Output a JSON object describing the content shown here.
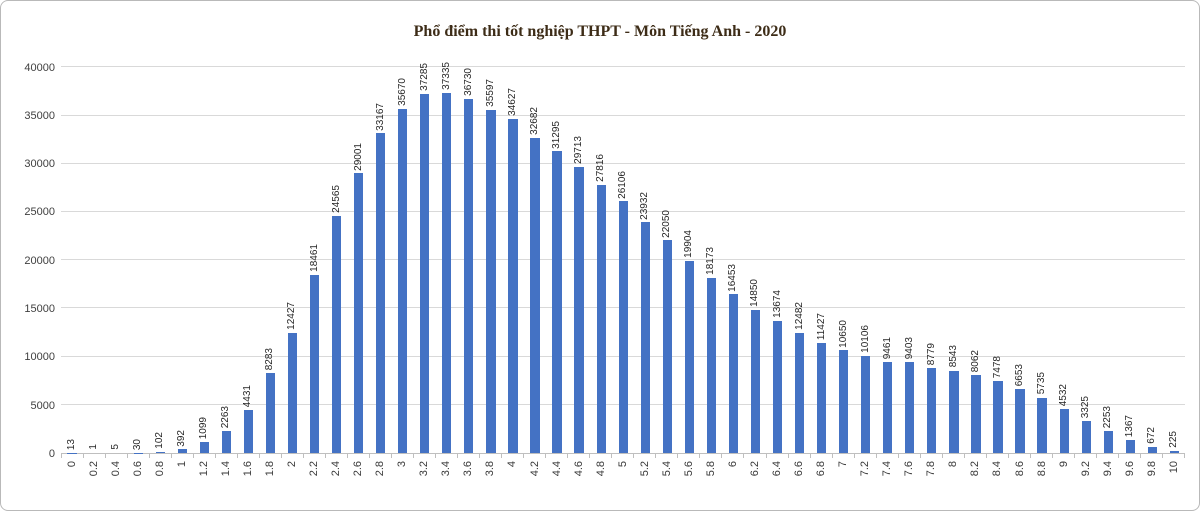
{
  "chart_data": {
    "type": "bar",
    "title": "Phổ điểm thi tốt nghiệp THPT - Môn Tiếng Anh - 2020",
    "categories": [
      "0",
      "0.2",
      "0.4",
      "0.6",
      "0.8",
      "1",
      "1.2",
      "1.4",
      "1.6",
      "1.8",
      "2",
      "2.2",
      "2.4",
      "2.6",
      "2.8",
      "3",
      "3.2",
      "3.4",
      "3.6",
      "3.8",
      "4",
      "4.2",
      "4.4",
      "4.6",
      "4.8",
      "5",
      "5.2",
      "5.4",
      "5.6",
      "5.8",
      "6",
      "6.2",
      "6.4",
      "6.6",
      "6.8",
      "7",
      "7.2",
      "7.4",
      "7.6",
      "7.8",
      "8",
      "8.2",
      "8.4",
      "8.6",
      "8.8",
      "9",
      "9.2",
      "9.4",
      "9.6",
      "9.8",
      "10"
    ],
    "values": [
      13,
      1,
      5,
      30,
      102,
      392,
      1099,
      2263,
      4431,
      8283,
      12427,
      18461,
      24565,
      29001,
      33167,
      35670,
      37285,
      37335,
      36730,
      35597,
      34627,
      32682,
      31295,
      29713,
      27816,
      26106,
      23932,
      22050,
      19904,
      18173,
      16453,
      14850,
      13674,
      12482,
      11427,
      10650,
      10106,
      9461,
      9403,
      8779,
      8543,
      8062,
      7478,
      6653,
      5735,
      4532,
      3325,
      2253,
      1367,
      672,
      225
    ],
    "xlabel": "",
    "ylabel": "",
    "ylim": [
      0,
      40000
    ],
    "yticks": [
      0,
      5000,
      10000,
      15000,
      20000,
      25000,
      30000,
      35000,
      40000
    ],
    "bar_color": "#4472C4",
    "grid": true,
    "legend": "none",
    "data_labels": true,
    "data_label_rotation": 90,
    "x_label_rotation": 90
  }
}
